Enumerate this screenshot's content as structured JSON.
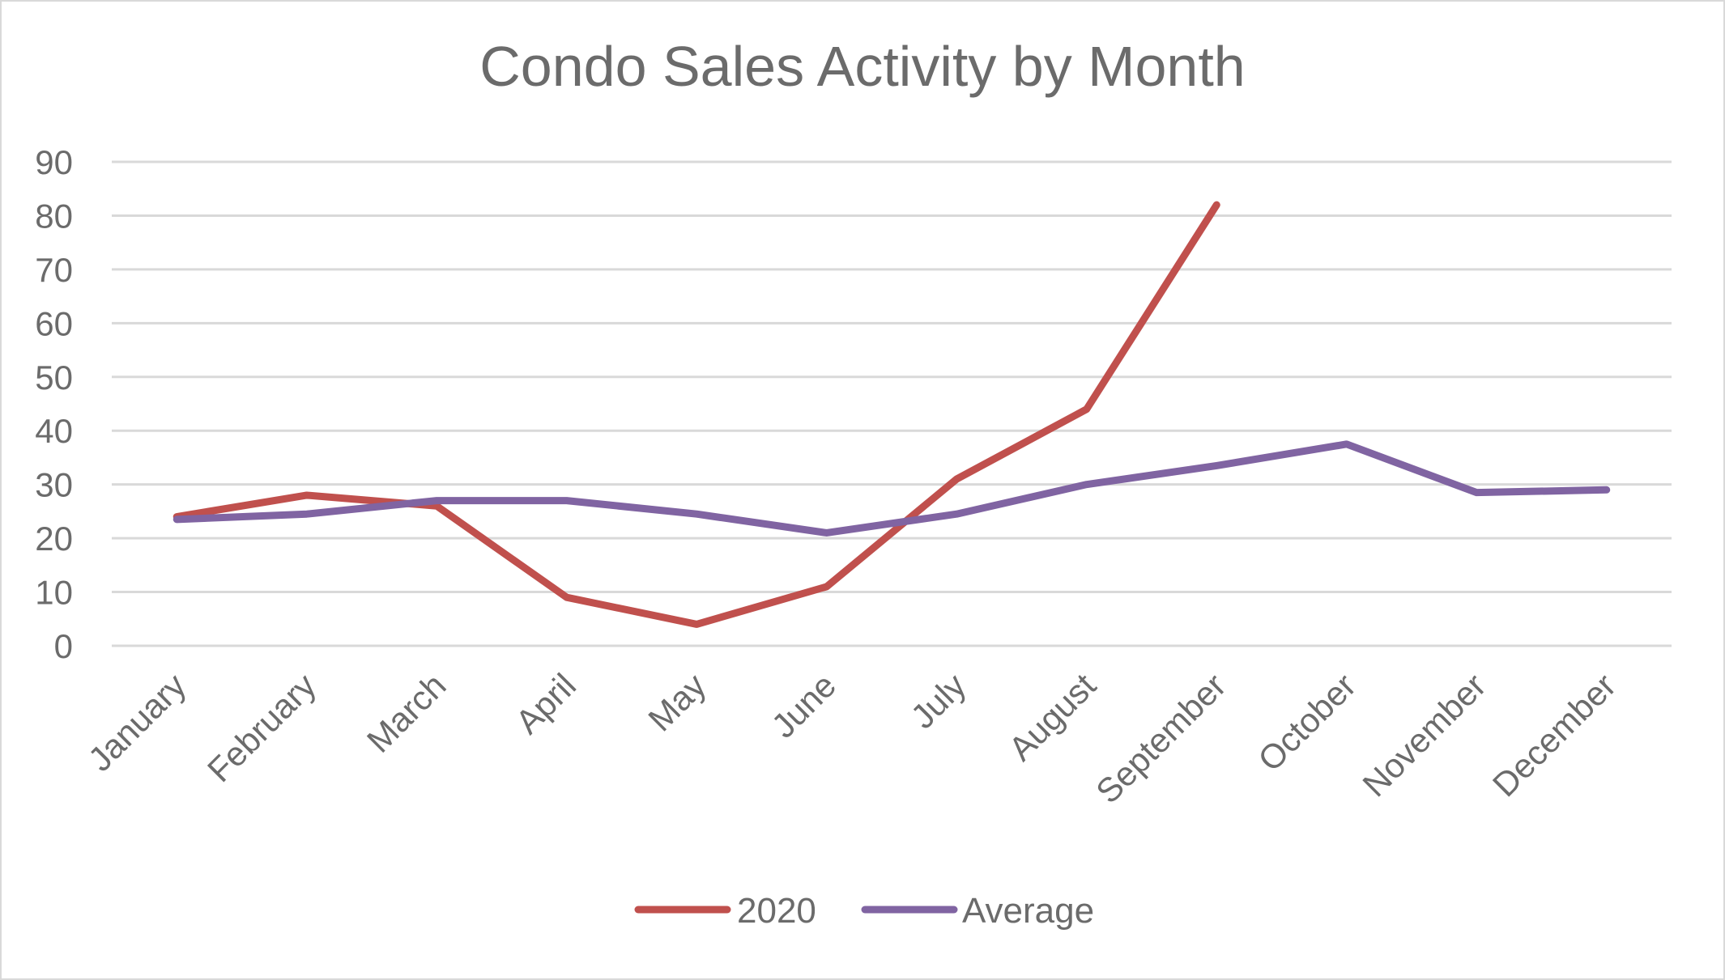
{
  "chart_data": {
    "type": "line",
    "title": "Condo Sales Activity by Month",
    "xlabel": "",
    "ylabel": "",
    "categories": [
      "January",
      "February",
      "March",
      "April",
      "May",
      "June",
      "July",
      "August",
      "September",
      "October",
      "November",
      "December"
    ],
    "ylim": [
      0,
      90
    ],
    "yticks": [
      0,
      10,
      20,
      30,
      40,
      50,
      60,
      70,
      80,
      90
    ],
    "grid": true,
    "legend_position": "bottom",
    "series": [
      {
        "name": "2020",
        "color": "#c0504d",
        "values": [
          24,
          28,
          26,
          9,
          4,
          11,
          31,
          44,
          82,
          null,
          null,
          null
        ]
      },
      {
        "name": "Average",
        "color": "#8064a2",
        "values": [
          23.5,
          24.5,
          27,
          27,
          24.5,
          21,
          24.5,
          30,
          33.5,
          37.5,
          28.5,
          29
        ]
      }
    ]
  }
}
